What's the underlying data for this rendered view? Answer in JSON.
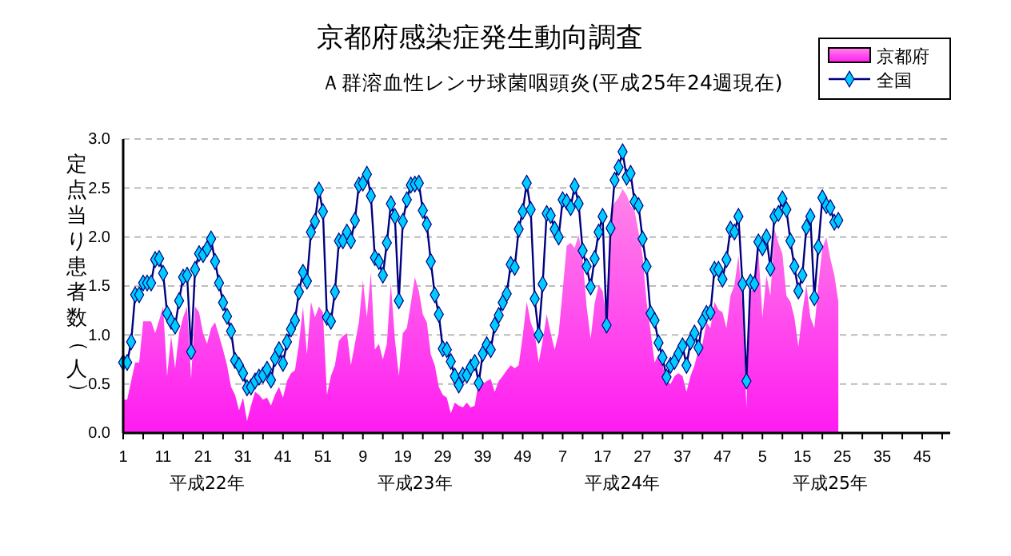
{
  "chart_data": {
    "type": "line",
    "title": "京都府感染症発生動向調査",
    "subtitle": "Ａ群溶血性レンサ球菌咽頭炎(平成25年24週現在)",
    "ylabel": "定点当り患者数（人）",
    "annotations": [
      "平成22年",
      "平成23年",
      "平成24年",
      "平成25年"
    ],
    "categories": [
      "1",
      null,
      null,
      null,
      null,
      null,
      null,
      null,
      null,
      null,
      "11",
      null,
      null,
      null,
      null,
      null,
      null,
      null,
      null,
      null,
      "21",
      null,
      null,
      null,
      null,
      null,
      null,
      null,
      null,
      null,
      "31",
      null,
      null,
      null,
      null,
      null,
      null,
      null,
      null,
      null,
      "41",
      null,
      null,
      null,
      null,
      null,
      null,
      null,
      null,
      null,
      "51",
      null,
      null,
      null,
      null,
      null,
      null,
      null,
      null,
      null,
      "9",
      null,
      null,
      null,
      null,
      null,
      null,
      null,
      null,
      null,
      "19",
      null,
      null,
      null,
      null,
      null,
      null,
      null,
      null,
      null,
      "29",
      null,
      null,
      null,
      null,
      null,
      null,
      null,
      null,
      null,
      "39",
      null,
      null,
      null,
      null,
      null,
      null,
      null,
      null,
      null,
      "49",
      null,
      null,
      null,
      null,
      null,
      null,
      null,
      null,
      null,
      "7",
      null,
      null,
      null,
      null,
      null,
      null,
      null,
      null,
      null,
      "17",
      null,
      null,
      null,
      null,
      null,
      null,
      null,
      null,
      null,
      "27",
      null,
      null,
      null,
      null,
      null,
      null,
      null,
      null,
      null,
      "37",
      null,
      null,
      null,
      null,
      null,
      null,
      null,
      null,
      null,
      "47",
      null,
      null,
      null,
      null,
      null,
      null,
      null,
      null,
      null,
      "5",
      null,
      null,
      null,
      null,
      null,
      null,
      null,
      null,
      null,
      "15",
      null,
      null,
      null,
      null,
      null,
      null,
      null,
      null,
      null,
      "25",
      null,
      null,
      null,
      null,
      null,
      null,
      null,
      null,
      null,
      "35",
      null,
      null,
      null,
      null,
      null,
      null,
      null,
      null,
      null,
      "45",
      null,
      null,
      null,
      null,
      null,
      null,
      null
    ],
    "series": [
      {
        "name": "京都府",
        "type": "area",
        "color": "#ff44dd",
        "values": [
          0.34,
          0.34,
          0.53,
          0.72,
          0.72,
          1.14,
          1.14,
          1.14,
          1.02,
          1.15,
          1.29,
          0.58,
          0.99,
          0.66,
          1.02,
          1.18,
          1.29,
          0.55,
          1.29,
          1.23,
          1.02,
          0.91,
          1.07,
          1.13,
          0.99,
          0.85,
          0.69,
          0.47,
          0.39,
          0.23,
          0.36,
          0.12,
          0.28,
          0.42,
          0.39,
          0.34,
          0.36,
          0.28,
          0.39,
          0.47,
          0.36,
          0.53,
          0.61,
          0.64,
          0.91,
          1.29,
          0.8,
          1.34,
          1.18,
          1.29,
          1.23,
          0.39,
          0.58,
          0.69,
          0.94,
          0.99,
          1.02,
          0.69,
          0.91,
          1.13,
          1.56,
          1.18,
          1.64,
          0.85,
          0.91,
          0.75,
          0.91,
          1.53,
          0.96,
          0.58,
          1.02,
          1.07,
          1.32,
          1.59,
          1.45,
          1.21,
          1.13,
          0.8,
          0.69,
          0.47,
          0.39,
          0.36,
          0.2,
          0.31,
          0.28,
          0.26,
          0.31,
          0.26,
          0.28,
          0.53,
          0.5,
          0.53,
          0.55,
          0.42,
          0.53,
          0.58,
          0.64,
          0.69,
          0.66,
          0.69,
          0.99,
          1.34,
          1.13,
          1.02,
          0.72,
          0.94,
          1.21,
          1.02,
          0.85,
          1.02,
          1.45,
          1.91,
          1.94,
          1.89,
          2.02,
          1.78,
          1.29,
          0.96,
          1.32,
          1.51,
          1.45,
          1.15,
          2.24,
          2.35,
          2.4,
          2.49,
          2.43,
          2.32,
          2.27,
          2.05,
          1.81,
          1.34,
          1.04,
          0.72,
          0.8,
          0.69,
          0.53,
          0.5,
          0.58,
          0.61,
          0.58,
          0.42,
          0.58,
          0.69,
          0.85,
          0.91,
          1.13,
          1.07,
          1.34,
          1.26,
          1.23,
          1.07,
          1.4,
          1.51,
          1.81,
          1.29,
          0.26,
          1.45,
          1.48,
          1.86,
          1.18,
          1.61,
          1.4,
          2.08,
          1.94,
          1.83,
          1.4,
          1.34,
          1.18,
          0.88,
          1.23,
          1.51,
          1.18,
          1.07,
          1.51,
          1.89,
          2.0,
          1.78,
          1.61,
          1.34,
          null,
          null,
          null,
          null,
          null,
          null,
          null,
          null,
          null,
          null,
          null,
          null,
          null,
          null,
          null,
          null,
          null,
          null,
          null,
          null,
          null,
          null,
          null,
          null,
          null,
          null,
          null,
          null
        ]
      },
      {
        "name": "全国",
        "color": "#000080",
        "marker": "diamond",
        "values": [
          0.72,
          0.72,
          0.93,
          1.41,
          1.41,
          1.53,
          1.53,
          1.53,
          1.77,
          1.78,
          1.63,
          1.22,
          1.14,
          1.09,
          1.35,
          1.59,
          1.61,
          0.83,
          1.67,
          1.83,
          1.82,
          1.88,
          1.98,
          1.75,
          1.53,
          1.33,
          1.19,
          1.04,
          0.74,
          0.69,
          0.61,
          0.46,
          0.47,
          0.53,
          0.57,
          0.59,
          0.65,
          0.54,
          0.76,
          0.85,
          0.71,
          0.93,
          1.06,
          1.15,
          1.44,
          1.64,
          1.55,
          2.05,
          2.16,
          2.48,
          2.26,
          1.18,
          1.14,
          1.44,
          1.96,
          1.96,
          2.05,
          1.96,
          2.17,
          2.53,
          2.55,
          2.64,
          2.42,
          1.79,
          1.75,
          1.61,
          1.94,
          2.34,
          2.21,
          1.35,
          2.16,
          2.38,
          2.53,
          2.54,
          2.55,
          2.27,
          2.13,
          1.75,
          1.41,
          1.21,
          0.86,
          0.85,
          0.73,
          0.58,
          0.49,
          0.59,
          0.59,
          0.67,
          0.72,
          0.51,
          0.81,
          0.9,
          0.85,
          1.1,
          1.2,
          1.33,
          1.42,
          1.72,
          1.69,
          2.08,
          2.26,
          2.55,
          2.28,
          1.37,
          1.0,
          1.52,
          2.24,
          2.22,
          2.08,
          2.0,
          2.38,
          2.36,
          2.3,
          2.52,
          2.34,
          1.86,
          1.7,
          1.49,
          1.78,
          2.05,
          2.21,
          1.1,
          2.09,
          2.58,
          2.71,
          2.87,
          2.61,
          2.65,
          2.36,
          2.32,
          1.98,
          1.7,
          1.22,
          1.15,
          0.92,
          0.77,
          0.57,
          0.69,
          0.73,
          0.81,
          0.89,
          0.69,
          0.93,
          1.02,
          0.87,
          1.14,
          1.22,
          1.23,
          1.67,
          1.67,
          1.57,
          1.77,
          2.08,
          2.05,
          2.21,
          1.52,
          0.53,
          1.54,
          1.52,
          1.95,
          1.89,
          2.0,
          1.68,
          2.21,
          2.24,
          2.39,
          2.28,
          1.96,
          1.7,
          1.45,
          1.61,
          2.1,
          2.21,
          1.38,
          1.9,
          2.4,
          2.32,
          2.3,
          2.15,
          2.17,
          null,
          null,
          null,
          null,
          null,
          null,
          null,
          null,
          null,
          null,
          null,
          null,
          null,
          null,
          null,
          null,
          null,
          null,
          null,
          null,
          null,
          null,
          null,
          null,
          null,
          null,
          null,
          null
        ]
      }
    ],
    "ylim": [
      0,
      3
    ],
    "yticks": [
      {
        "value": 0,
        "label": "0.0"
      },
      {
        "value": 0.5,
        "label": "0.5"
      },
      {
        "value": 1,
        "label": "1.0"
      },
      {
        "value": 1.5,
        "label": "1.5"
      },
      {
        "value": 2,
        "label": "2.0"
      },
      {
        "value": 2.5,
        "label": "2.5"
      },
      {
        "value": 3,
        "label": "3.0"
      }
    ],
    "grid": "y",
    "legend": "top right"
  }
}
